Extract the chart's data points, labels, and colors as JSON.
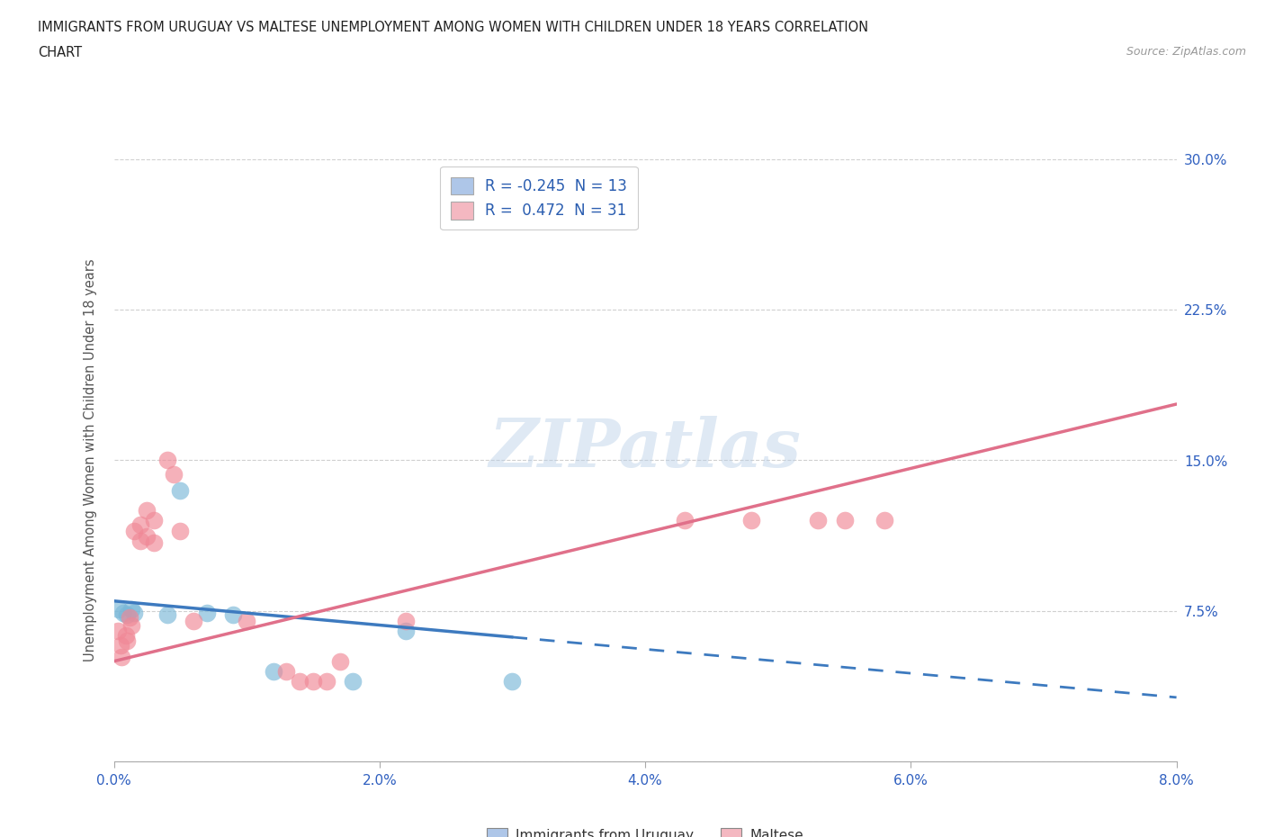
{
  "title_line1": "IMMIGRANTS FROM URUGUAY VS MALTESE UNEMPLOYMENT AMONG WOMEN WITH CHILDREN UNDER 18 YEARS CORRELATION",
  "title_line2": "CHART",
  "source": "Source: ZipAtlas.com",
  "ylabel": "Unemployment Among Women with Children Under 18 years",
  "watermark": "ZIPatlas",
  "legend_label_uruguay": "R = -0.245  N = 13",
  "legend_label_maltese": "R =  0.472  N = 31",
  "legend_color_uruguay": "#aec6e8",
  "legend_color_maltese": "#f4b8c1",
  "xlim": [
    0.0,
    0.08
  ],
  "ylim": [
    0.0,
    0.3
  ],
  "xticks": [
    0.0,
    0.02,
    0.04,
    0.06,
    0.08
  ],
  "xtick_labels": [
    "0.0%",
    "2.0%",
    "4.0%",
    "6.0%",
    "8.0%"
  ],
  "yticks": [
    0.0,
    0.075,
    0.15,
    0.225,
    0.3
  ],
  "ytick_labels_right": [
    "",
    "7.5%",
    "15.0%",
    "22.5%",
    "30.0%"
  ],
  "grid_color": "#d0d0d0",
  "background_color": "#ffffff",
  "uruguay_scatter": [
    [
      0.0004,
      0.076
    ],
    [
      0.0007,
      0.074
    ],
    [
      0.001,
      0.073
    ],
    [
      0.0013,
      0.076
    ],
    [
      0.0015,
      0.074
    ],
    [
      0.004,
      0.073
    ],
    [
      0.005,
      0.135
    ],
    [
      0.007,
      0.074
    ],
    [
      0.009,
      0.073
    ],
    [
      0.012,
      0.045
    ],
    [
      0.018,
      0.04
    ],
    [
      0.022,
      0.065
    ],
    [
      0.03,
      0.04
    ]
  ],
  "maltese_scatter": [
    [
      0.0003,
      0.065
    ],
    [
      0.0005,
      0.058
    ],
    [
      0.0006,
      0.052
    ],
    [
      0.0009,
      0.063
    ],
    [
      0.001,
      0.06
    ],
    [
      0.0012,
      0.072
    ],
    [
      0.0013,
      0.068
    ],
    [
      0.0015,
      0.115
    ],
    [
      0.002,
      0.118
    ],
    [
      0.002,
      0.11
    ],
    [
      0.0025,
      0.125
    ],
    [
      0.0025,
      0.112
    ],
    [
      0.003,
      0.12
    ],
    [
      0.003,
      0.109
    ],
    [
      0.004,
      0.15
    ],
    [
      0.0045,
      0.143
    ],
    [
      0.005,
      0.115
    ],
    [
      0.006,
      0.07
    ],
    [
      0.01,
      0.07
    ],
    [
      0.013,
      0.045
    ],
    [
      0.014,
      0.04
    ],
    [
      0.015,
      0.04
    ],
    [
      0.016,
      0.04
    ],
    [
      0.017,
      0.05
    ],
    [
      0.022,
      0.07
    ],
    [
      0.033,
      0.27
    ],
    [
      0.043,
      0.12
    ],
    [
      0.048,
      0.12
    ],
    [
      0.053,
      0.12
    ],
    [
      0.055,
      0.12
    ],
    [
      0.058,
      0.12
    ]
  ],
  "uruguay_line_solid": {
    "x0": 0.0,
    "y0": 0.08,
    "x1": 0.03,
    "y1": 0.062
  },
  "uruguay_line_dash": {
    "x0": 0.03,
    "y0": 0.062,
    "x1": 0.08,
    "y1": 0.032
  },
  "maltese_line": {
    "x0": 0.0,
    "y0": 0.05,
    "x1": 0.08,
    "y1": 0.178
  },
  "uruguay_dot_color": "#7ab8d8",
  "maltese_dot_color": "#f08896",
  "trend_blue_color": "#3d7abf",
  "trend_pink_color": "#e0708a",
  "legend_r_color": "#2a5db0",
  "bottom_legend_uruguay": "Immigrants from Uruguay",
  "bottom_legend_maltese": "Maltese"
}
